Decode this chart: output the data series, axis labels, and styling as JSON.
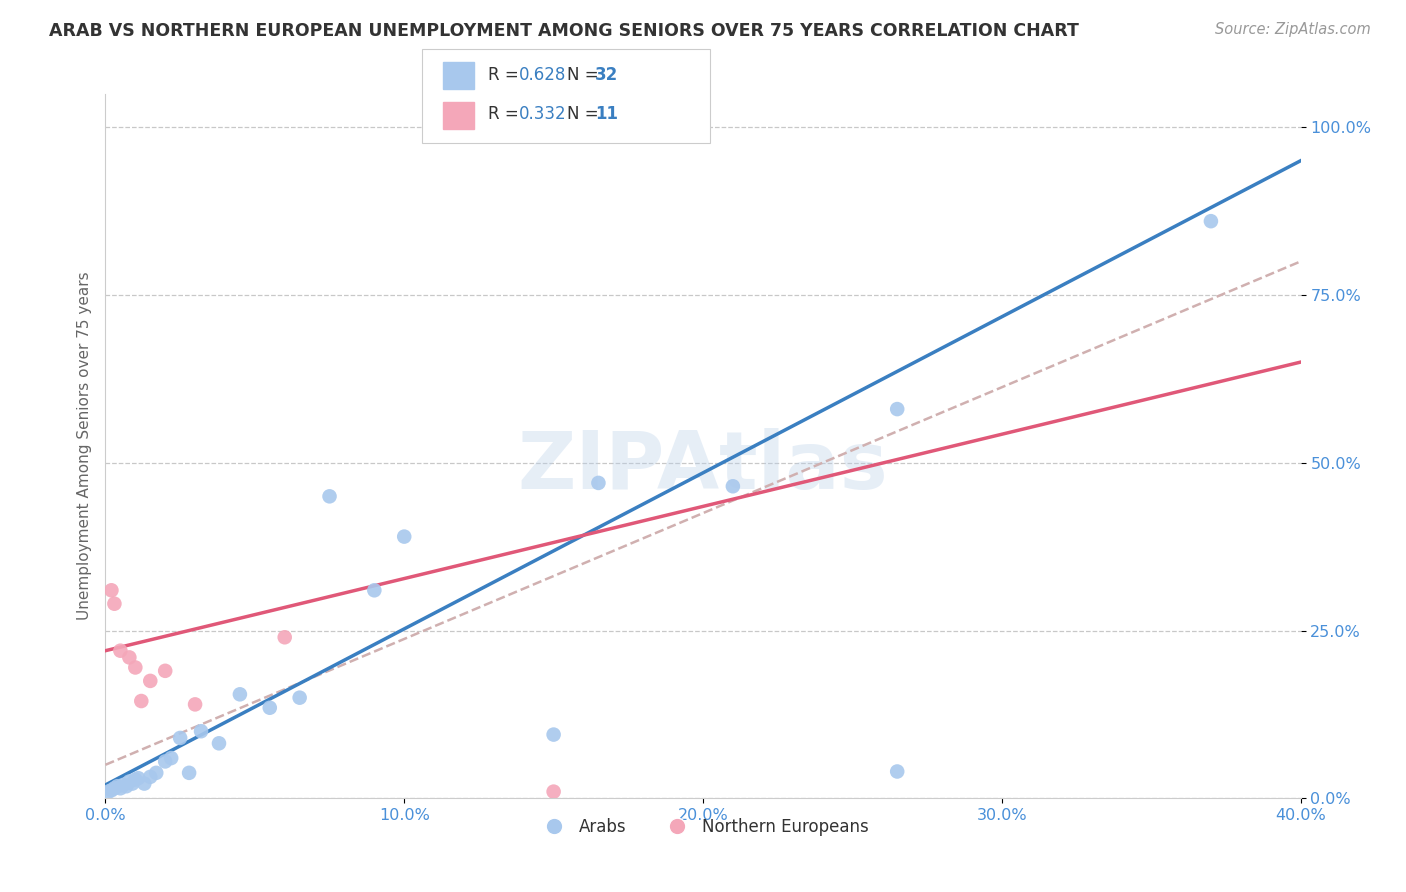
{
  "title": "ARAB VS NORTHERN EUROPEAN UNEMPLOYMENT AMONG SENIORS OVER 75 YEARS CORRELATION CHART",
  "source": "Source: ZipAtlas.com",
  "ylabel": "Unemployment Among Seniors over 75 years",
  "xlim": [
    0.0,
    0.4
  ],
  "ylim": [
    0.0,
    1.05
  ],
  "x_ticks": [
    0.0,
    0.1,
    0.2,
    0.3,
    0.4
  ],
  "x_tick_labels": [
    "0.0%",
    "10.0%",
    "20.0%",
    "30.0%",
    "40.0%"
  ],
  "y_ticks": [
    0.0,
    0.25,
    0.5,
    0.75,
    1.0
  ],
  "y_tick_labels": [
    "0.0%",
    "25.0%",
    "50.0%",
    "75.0%",
    "100.0%"
  ],
  "arab_color": "#a8c8ed",
  "northern_european_color": "#f4a7b9",
  "arab_line_color": "#3a7fc1",
  "northern_european_line_color": "#e05878",
  "dash_line_color": "#d0b0b0",
  "arab_R": "0.628",
  "arab_N": "32",
  "ne_R": "0.332",
  "ne_N": "11",
  "legend_val_color": "#3a7fc1",
  "legend_N_bold_color": "#e05a32",
  "watermark": "ZIPAtlas",
  "background_color": "#ffffff",
  "grid_color": "#c8c8c8",
  "title_color": "#333333",
  "source_color": "#999999",
  "ylabel_color": "#666666",
  "tick_color": "#4a90d9",
  "arab_x": [
    0.001,
    0.002,
    0.003,
    0.004,
    0.005,
    0.006,
    0.007,
    0.008,
    0.009,
    0.01,
    0.011,
    0.013,
    0.015,
    0.017,
    0.02,
    0.022,
    0.025,
    0.028,
    0.032,
    0.038,
    0.045,
    0.055,
    0.065,
    0.075,
    0.09,
    0.1,
    0.15,
    0.165,
    0.21,
    0.265,
    0.265,
    0.37
  ],
  "arab_y": [
    0.01,
    0.012,
    0.015,
    0.018,
    0.015,
    0.02,
    0.018,
    0.025,
    0.022,
    0.028,
    0.03,
    0.022,
    0.032,
    0.038,
    0.055,
    0.06,
    0.09,
    0.038,
    0.1,
    0.082,
    0.155,
    0.135,
    0.15,
    0.45,
    0.31,
    0.39,
    0.095,
    0.47,
    0.465,
    0.04,
    0.58,
    0.86
  ],
  "ne_x": [
    0.002,
    0.003,
    0.005,
    0.008,
    0.01,
    0.012,
    0.015,
    0.02,
    0.03,
    0.06,
    0.15
  ],
  "ne_y": [
    0.31,
    0.29,
    0.22,
    0.21,
    0.195,
    0.145,
    0.175,
    0.19,
    0.14,
    0.24,
    0.01
  ]
}
